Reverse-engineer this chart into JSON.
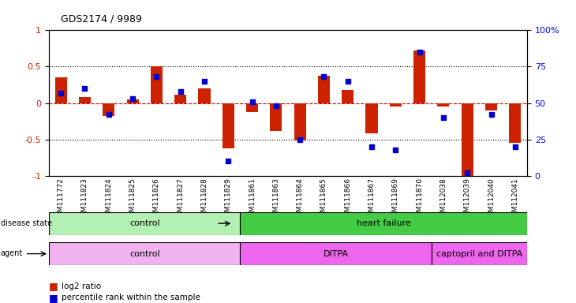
{
  "title": "GDS2174 / 9989",
  "samples": [
    "GSM111772",
    "GSM111823",
    "GSM111824",
    "GSM111825",
    "GSM111826",
    "GSM111827",
    "GSM111828",
    "GSM111829",
    "GSM111861",
    "GSM111863",
    "GSM111864",
    "GSM111865",
    "GSM111866",
    "GSM111867",
    "GSM111869",
    "GSM111870",
    "GSM112038",
    "GSM112039",
    "GSM112040",
    "GSM112041"
  ],
  "log2_ratio": [
    0.35,
    0.08,
    -0.18,
    0.05,
    0.5,
    0.12,
    0.2,
    -0.62,
    -0.12,
    -0.38,
    -0.52,
    0.38,
    0.18,
    -0.42,
    -0.05,
    0.72,
    -0.05,
    -1.0,
    -0.1,
    -0.55
  ],
  "percentile_rank": [
    57,
    60,
    42,
    53,
    68,
    58,
    65,
    10,
    51,
    48,
    25,
    68,
    65,
    20,
    18,
    85,
    40,
    2,
    42,
    20
  ],
  "disease_state_groups": [
    {
      "label": "control",
      "start": 0,
      "end": 8,
      "color": "#b3f0b3"
    },
    {
      "label": "heart failure",
      "start": 8,
      "end": 20,
      "color": "#44cc44"
    }
  ],
  "agent_groups": [
    {
      "label": "control",
      "start": 0,
      "end": 8,
      "color": "#f0b3f0"
    },
    {
      "label": "DITPA",
      "start": 8,
      "end": 16,
      "color": "#ee66ee"
    },
    {
      "label": "captopril and DITPA",
      "start": 16,
      "end": 20,
      "color": "#ee66ee"
    }
  ],
  "ylim_left": [
    -1,
    1
  ],
  "ylim_right": [
    0,
    100
  ],
  "bar_color": "#cc2200",
  "dot_color": "#0000cc",
  "zero_line_color": "#cc0000",
  "bg_color": "#ffffff",
  "plot_bg": "#ffffff",
  "right_yticks": [
    0,
    25,
    50,
    75,
    100
  ],
  "right_yticklabels": [
    "0",
    "25",
    "50",
    "75",
    "100%"
  ],
  "left_yticks": [
    -1,
    -0.5,
    0,
    0.5,
    1
  ],
  "left_yticklabels": [
    "-1",
    "-0.5",
    "0",
    "0.5",
    "1"
  ]
}
